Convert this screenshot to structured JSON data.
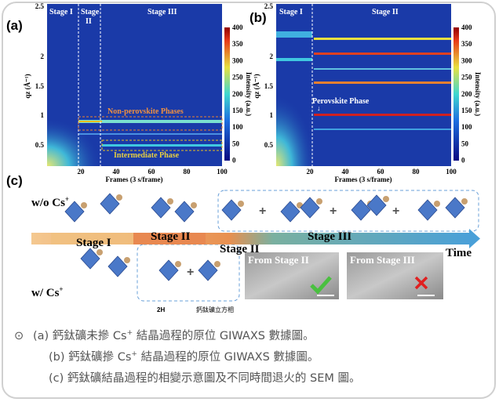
{
  "axes": {
    "y_label": "qz (Å⁻¹)",
    "x_label": "Frames (3 s/frame)",
    "colorbar_label": "Intensity (a.u.)",
    "yticks": [
      "2.5",
      "2",
      "1.5",
      "1",
      "0.5"
    ],
    "xticks": [
      "20",
      "40",
      "60",
      "80",
      "100"
    ],
    "colorbar_ticks": [
      "400",
      "350",
      "300",
      "250",
      "200",
      "150",
      "100",
      "50",
      "0"
    ]
  },
  "panel_a": {
    "label": "(a)",
    "stages": [
      "Stage I",
      "Stage",
      "II",
      "Stage III"
    ],
    "annotations": [
      "Non-perovskite Phases",
      "Intermediate Phase"
    ]
  },
  "panel_b": {
    "label": "(b)",
    "stages": [
      "Stage I",
      "Stage II"
    ],
    "annotation": "Perovskite Phase"
  },
  "panel_c": {
    "label": "(c)",
    "without": [
      "w/o Cs",
      "+"
    ],
    "with": [
      "w/ Cs",
      "+"
    ],
    "stages": [
      "Stage I",
      "Stage II",
      "Stage III",
      "Stage II"
    ],
    "time": "Time",
    "sem": [
      "From Stage II",
      "From Stage III"
    ],
    "phase_labels": [
      "2H",
      "鈣鈦礦立方相"
    ]
  },
  "caption": {
    "symbol": "⊙",
    "lines": [
      [
        "(a) 鈣鈦礦未摻 Cs",
        "+",
        " 結晶過程的原位 GIWAXS 數據圖。"
      ],
      [
        "(b) 鈣鈦礦摻 Cs",
        "+",
        " 結晶過程的原位 GIWAXS 數據圖。"
      ],
      [
        "(c) 鈣鈦礦結晶過程的相變示意圖及不同時間退火的 SEM 圖。"
      ]
    ]
  }
}
